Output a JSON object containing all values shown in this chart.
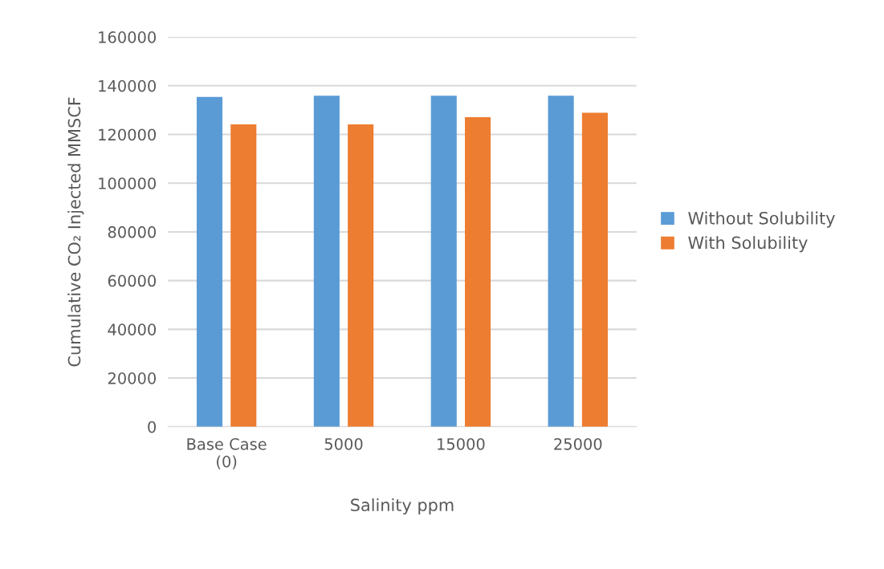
{
  "chart_data": {
    "type": "bar",
    "xlabel": "Salinity ppm",
    "ylabel": "Cumulative CO₂ Injected MMSCF",
    "categories": [
      "Base Case\n(0)",
      "5000",
      "15000",
      "25000"
    ],
    "series": [
      {
        "name": "Without Solubility",
        "color": "#5b9bd5",
        "values": [
          135400,
          135900,
          135900,
          135900
        ]
      },
      {
        "name": "With Solubility",
        "color": "#ed7d31",
        "values": [
          124100,
          124100,
          127100,
          128900
        ]
      }
    ],
    "ylim": [
      0,
      160000
    ],
    "yticks": [
      0,
      20000,
      40000,
      60000,
      80000,
      100000,
      120000,
      140000,
      160000
    ],
    "grid": "y",
    "legend": "right"
  }
}
